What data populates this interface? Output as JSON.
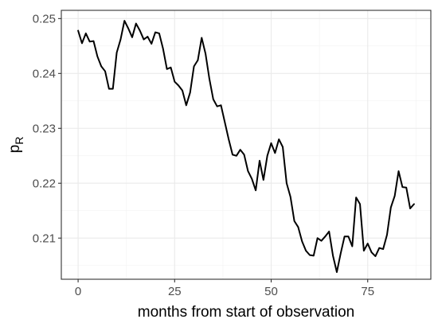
{
  "chart_data": {
    "type": "line",
    "xlabel": "months from start of observation",
    "ylabel": {
      "main": "p",
      "subscript": "R"
    },
    "xlim": [
      -4.35,
      91.35
    ],
    "ylim": [
      0.2025,
      0.2515
    ],
    "x_ticks": [
      0,
      25,
      50,
      75
    ],
    "x_tick_labels": [
      "0",
      "25",
      "50",
      "75"
    ],
    "x_minor_ticks": [
      12.5,
      37.5,
      62.5,
      87.5
    ],
    "y_ticks": [
      0.21,
      0.22,
      0.23,
      0.24,
      0.25
    ],
    "y_tick_labels": [
      "0.21",
      "0.22",
      "0.23",
      "0.24",
      "0.25"
    ],
    "y_minor_ticks": [
      0.205,
      0.215,
      0.225,
      0.235,
      0.245
    ],
    "grid": true,
    "theme": "bw",
    "colors": {
      "line": "#000000",
      "grid_major": "#ebebeb",
      "grid_minor": "#f2f2f2",
      "panel_border": "#333333",
      "tick_text": "#4d4d4d"
    },
    "series": [
      {
        "x": [
          0,
          1,
          2,
          3,
          4,
          5,
          6,
          7,
          8,
          9,
          10,
          11,
          12,
          13,
          14,
          15,
          16,
          17,
          18,
          19,
          20,
          21,
          22,
          23,
          24,
          25,
          26,
          27,
          28,
          29,
          30,
          31,
          32,
          33,
          34,
          35,
          36,
          37,
          38,
          39,
          40,
          41,
          42,
          43,
          44,
          45,
          46,
          47,
          48,
          49,
          50,
          51,
          52,
          53,
          54,
          55,
          56,
          57,
          58,
          59,
          60,
          61,
          62,
          63,
          64,
          65,
          66,
          67,
          68,
          69,
          70,
          71,
          72,
          73,
          74,
          75,
          76,
          77,
          78,
          79,
          80,
          81,
          82,
          83,
          84,
          85,
          86,
          87
        ],
        "y": [
          0.2478,
          0.2455,
          0.2473,
          0.2458,
          0.2459,
          0.2431,
          0.2413,
          0.2404,
          0.2372,
          0.2372,
          0.2438,
          0.2462,
          0.2496,
          0.2482,
          0.2466,
          0.2491,
          0.2478,
          0.2462,
          0.2467,
          0.2454,
          0.2475,
          0.2473,
          0.2445,
          0.2408,
          0.2411,
          0.2385,
          0.2378,
          0.2369,
          0.2342,
          0.2365,
          0.2413,
          0.2424,
          0.2465,
          0.2436,
          0.239,
          0.2353,
          0.234,
          0.2342,
          0.2311,
          0.228,
          0.2252,
          0.225,
          0.2261,
          0.2252,
          0.2222,
          0.2208,
          0.2187,
          0.2241,
          0.2206,
          0.225,
          0.2273,
          0.2255,
          0.228,
          0.2266,
          0.22,
          0.2175,
          0.2131,
          0.212,
          0.2094,
          0.2077,
          0.2069,
          0.2068,
          0.21,
          0.2095,
          0.2103,
          0.2112,
          0.2068,
          0.2038,
          0.2072,
          0.2103,
          0.2103,
          0.2085,
          0.2174,
          0.2162,
          0.2077,
          0.209,
          0.2074,
          0.2067,
          0.2082,
          0.208,
          0.2106,
          0.2156,
          0.2177,
          0.2222,
          0.2193,
          0.2192,
          0.2154,
          0.2162
        ]
      }
    ]
  }
}
